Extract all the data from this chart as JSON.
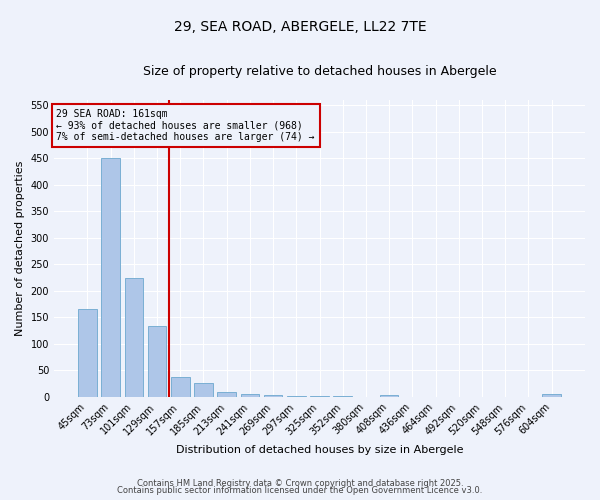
{
  "title": "29, SEA ROAD, ABERGELE, LL22 7TE",
  "subtitle": "Size of property relative to detached houses in Abergele",
  "xlabel": "Distribution of detached houses by size in Abergele",
  "ylabel": "Number of detached properties",
  "categories": [
    "45sqm",
    "73sqm",
    "101sqm",
    "129sqm",
    "157sqm",
    "185sqm",
    "213sqm",
    "241sqm",
    "269sqm",
    "297sqm",
    "325sqm",
    "352sqm",
    "380sqm",
    "408sqm",
    "436sqm",
    "464sqm",
    "492sqm",
    "520sqm",
    "548sqm",
    "576sqm",
    "604sqm"
  ],
  "values": [
    165,
    450,
    225,
    133,
    37,
    26,
    9,
    5,
    3,
    1,
    1,
    1,
    0,
    3,
    0,
    0,
    0,
    0,
    0,
    0,
    5
  ],
  "bar_color": "#aec6e8",
  "bar_edge_color": "#7aafd4",
  "ylim": [
    0,
    560
  ],
  "yticks": [
    0,
    50,
    100,
    150,
    200,
    250,
    300,
    350,
    400,
    450,
    500,
    550
  ],
  "property_line_index": 4,
  "property_line_color": "#cc0000",
  "annotation_line1": "29 SEA ROAD: 161sqm",
  "annotation_line2": "← 93% of detached houses are smaller (968)",
  "annotation_line3": "7% of semi-detached houses are larger (74) →",
  "annotation_box_color": "#cc0000",
  "footer1": "Contains HM Land Registry data © Crown copyright and database right 2025.",
  "footer2": "Contains public sector information licensed under the Open Government Licence v3.0.",
  "background_color": "#eef2fb",
  "grid_color": "#ffffff",
  "title_fontsize": 10,
  "subtitle_fontsize": 9,
  "axis_label_fontsize": 8,
  "tick_fontsize": 7,
  "footer_fontsize": 6
}
